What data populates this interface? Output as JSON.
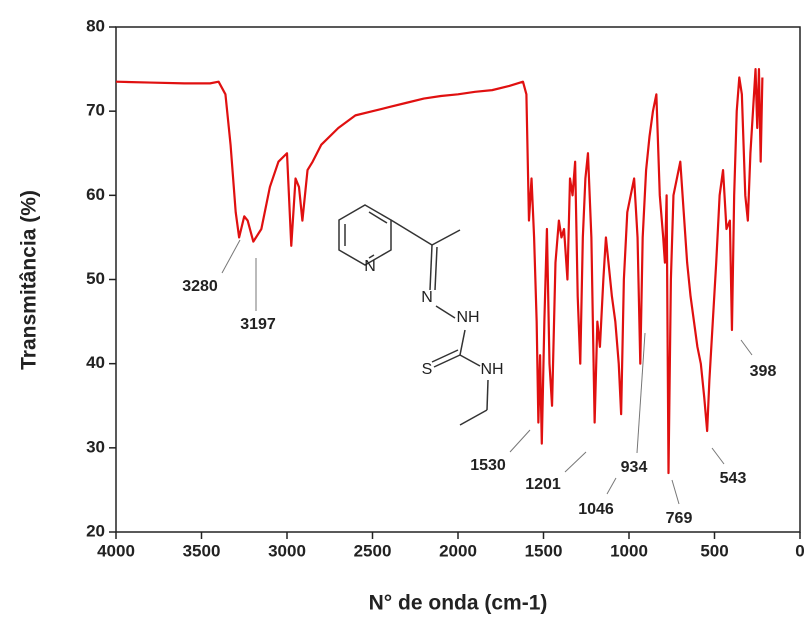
{
  "chart_data": {
    "type": "line",
    "xlabel": "N° de onda (cm-1)",
    "ylabel": "Transmitância (%)",
    "xlim": [
      4000,
      0
    ],
    "ylim": [
      20,
      80
    ],
    "xticks": [
      4000,
      3500,
      3000,
      2500,
      2000,
      1500,
      1000,
      500,
      0
    ],
    "yticks": [
      20,
      30,
      40,
      50,
      60,
      70,
      80
    ],
    "series": [
      {
        "color": "#e01010",
        "x": [
          4000,
          3800,
          3600,
          3450,
          3400,
          3360,
          3330,
          3300,
          3280,
          3250,
          3230,
          3197,
          3150,
          3100,
          3050,
          3000,
          2975,
          2950,
          2930,
          2910,
          2880,
          2850,
          2800,
          2700,
          2600,
          2500,
          2400,
          2300,
          2200,
          2100,
          2000,
          1900,
          1800,
          1700,
          1620,
          1600,
          1585,
          1570,
          1555,
          1540,
          1530,
          1520,
          1510,
          1495,
          1480,
          1465,
          1450,
          1430,
          1410,
          1395,
          1380,
          1360,
          1345,
          1330,
          1315,
          1300,
          1285,
          1270,
          1255,
          1240,
          1220,
          1201,
          1185,
          1170,
          1150,
          1135,
          1120,
          1100,
          1080,
          1060,
          1046,
          1030,
          1010,
          990,
          970,
          950,
          934,
          920,
          900,
          880,
          860,
          840,
          820,
          800,
          790,
          780,
          769,
          755,
          740,
          720,
          700,
          680,
          660,
          640,
          620,
          600,
          580,
          560,
          543,
          530,
          510,
          490,
          470,
          450,
          430,
          410,
          398,
          385,
          370,
          355,
          340,
          320,
          305,
          290,
          275,
          260,
          250,
          240,
          230,
          220
        ],
        "values": [
          73.5,
          73.4,
          73.3,
          73.3,
          73.5,
          72,
          66,
          58,
          55,
          57.5,
          57,
          54.5,
          56,
          61,
          64,
          65,
          54,
          62,
          61,
          57,
          63,
          64,
          66,
          68,
          69.5,
          70,
          70.5,
          71,
          71.5,
          71.8,
          72,
          72.3,
          72.5,
          73,
          73.5,
          72,
          57,
          62,
          55,
          45,
          33,
          41,
          30.5,
          45,
          56,
          40,
          35,
          52,
          57,
          55,
          56,
          50,
          62,
          60,
          64,
          48,
          40,
          55,
          62,
          65,
          55,
          33,
          45,
          42,
          50,
          55,
          52,
          48,
          45,
          40,
          34,
          50,
          58,
          60,
          62,
          55,
          40,
          55,
          63,
          67,
          70,
          72,
          60,
          55,
          52,
          60,
          27,
          50,
          60,
          62,
          64,
          58,
          52,
          48,
          45,
          42,
          40,
          36,
          32,
          38,
          45,
          52,
          60,
          63,
          56,
          57,
          44,
          60,
          70,
          74,
          72,
          60,
          57,
          65,
          70,
          75,
          68,
          75,
          64,
          74
        ]
      }
    ],
    "peak_labels": [
      3280,
      3197,
      1530,
      1201,
      1046,
      934,
      769,
      543,
      398
    ],
    "molecule_labels": [
      "N",
      "N",
      "NH",
      "S",
      "NH"
    ]
  }
}
